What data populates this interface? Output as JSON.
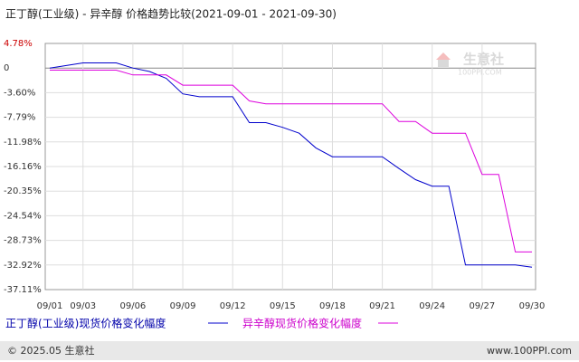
{
  "chart_data": {
    "type": "line",
    "title": "正丁醇(工业级) - 异辛醇 价格趋势比较(2021-09-01 - 2021-09-30)",
    "categories": [
      "09/01",
      null,
      "09/03",
      null,
      null,
      "09/06",
      null,
      null,
      "09/09",
      null,
      null,
      "09/12",
      null,
      null,
      "09/15",
      null,
      null,
      "09/18",
      null,
      null,
      "09/21",
      null,
      null,
      "09/24",
      null,
      null,
      "09/27",
      null,
      null,
      "09/30"
    ],
    "series": [
      {
        "name": "正丁醇(工业级)现货价格变化幅度",
        "color": "#0000cc",
        "values": [
          0,
          0.5,
          1,
          1,
          1,
          0,
          -0.5,
          -1.5,
          -3.8,
          -4.3,
          -4.3,
          -4.3,
          -8.7,
          -8.7,
          -9.5,
          -10.5,
          -13,
          -14.5,
          -14.5,
          -14.5,
          -14.5,
          -16.5,
          -18.4,
          -19.5,
          -19.5,
          -32.9,
          -32.9,
          -32.9,
          -32.9,
          -33.3
        ]
      },
      {
        "name": "异辛醇现货价格变化幅度",
        "color": "#dd00dd",
        "values": [
          -0.3,
          -0.3,
          -0.3,
          -0.3,
          -0.3,
          -1,
          -1,
          -1,
          -2.5,
          -2.5,
          -2.5,
          -2.5,
          -5,
          -5.5,
          -5.5,
          -5.5,
          -5.5,
          -5.5,
          -5.5,
          -5.5,
          -5.5,
          -8.5,
          -8.5,
          -10.5,
          -10.5,
          -10.5,
          -17.5,
          -17.5,
          -30.7,
          -30.7
        ]
      }
    ],
    "ylim": [
      -37.11,
      4.78
    ],
    "yticks": [
      {
        "value": 4.78,
        "label": "4.78%"
      },
      0,
      {
        "value": -3.6,
        "label": "-3.60%"
      },
      {
        "value": -7.79,
        "label": "-7.79%"
      },
      {
        "value": -11.98,
        "label": "-11.98%"
      },
      {
        "value": -16.16,
        "label": "-16.16%"
      },
      {
        "value": -20.35,
        "label": "-20.35%"
      },
      {
        "value": -24.54,
        "label": "-24.54%"
      },
      {
        "value": -28.73,
        "label": "-28.73%"
      },
      {
        "value": -32.92,
        "label": "-32.92%"
      },
      {
        "value": -37.11,
        "label": "-37.11%"
      }
    ],
    "grid": true
  },
  "watermark": {
    "name": "生意社",
    "url": "100PPI.COM"
  },
  "footer": {
    "copyright": "© 2025.05 生意社",
    "url": "www.100PPI.com"
  }
}
